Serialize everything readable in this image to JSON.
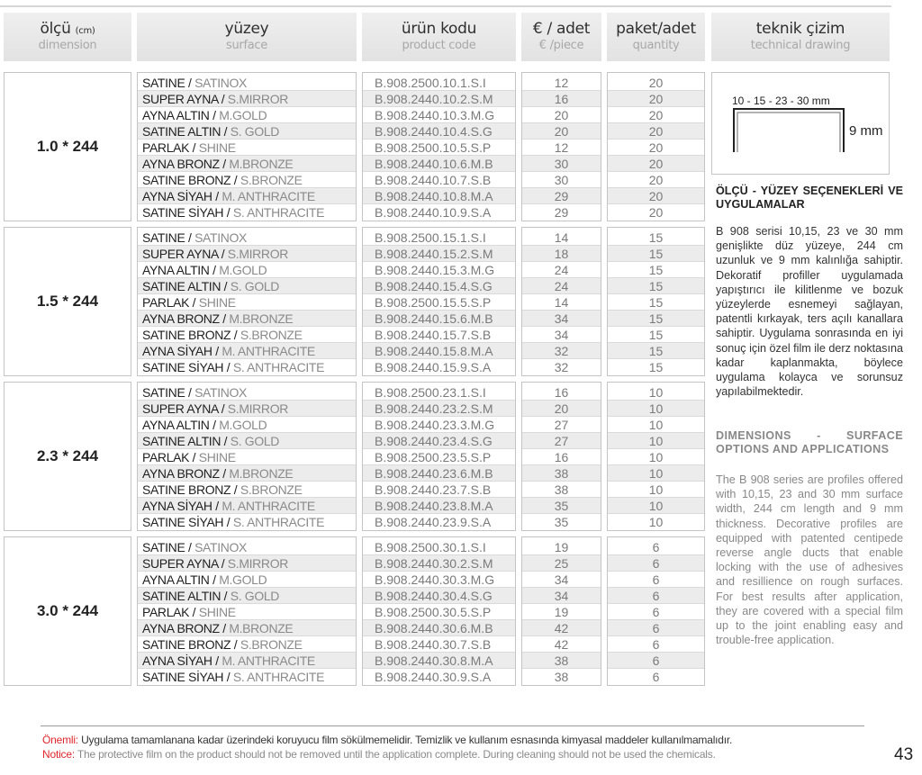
{
  "header": {
    "dimension": {
      "title": "ölçü",
      "unit": "(cm)",
      "subtitle": "dimension"
    },
    "surface": {
      "title": "yüzey",
      "subtitle": "surface"
    },
    "code": {
      "title": "ürün kodu",
      "subtitle": "product code"
    },
    "price": {
      "title": "€ / adet",
      "subtitle": "€ /piece"
    },
    "qty": {
      "title": "paket/adet",
      "subtitle": "quantity"
    },
    "drawing": {
      "title": "teknik çizim",
      "subtitle": "technical drawing"
    }
  },
  "surfaces": [
    {
      "tr": "SATINE",
      "en": "SATINOX"
    },
    {
      "tr": "SUPER AYNA",
      "en": "S.MIRROR"
    },
    {
      "tr": "AYNA ALTIN",
      "en": "M.GOLD"
    },
    {
      "tr": "SATINE ALTIN",
      "en": "S. GOLD"
    },
    {
      "tr": "PARLAK",
      "en": "SHINE"
    },
    {
      "tr": "AYNA BRONZ",
      "en": "M.BRONZE"
    },
    {
      "tr": "SATINE BRONZ",
      "en": "S.BRONZE"
    },
    {
      "tr": "AYNA SİYAH",
      "en": "M. ANTHRACITE"
    },
    {
      "tr": "SATINE SİYAH",
      "en": "S. ANTHRACITE"
    }
  ],
  "groups": [
    {
      "dimension": "1.0 * 244",
      "codes": [
        "B.908.2500.10.1.S.I",
        "B.908.2440.10.2.S.M",
        "B.908.2440.10.3.M.G",
        "B.908.2440.10.4.S.G",
        "B.908.2500.10.5.S.P",
        "B.908.2440.10.6.M.B",
        "B.908.2440.10.7.S.B",
        "B.908.2440.10.8.M.A",
        "B.908.2440.10.9.S.A"
      ],
      "prices": [
        "12",
        "16",
        "20",
        "20",
        "12",
        "30",
        "30",
        "29",
        "29"
      ],
      "qty": [
        "20",
        "20",
        "20",
        "20",
        "20",
        "20",
        "20",
        "20",
        "20"
      ]
    },
    {
      "dimension": "1.5 * 244",
      "codes": [
        "B.908.2500.15.1.S.I",
        "B.908.2440.15.2.S.M",
        "B.908.2440.15.3.M.G",
        "B.908.2440.15.4.S.G",
        "B.908.2500.15.5.S.P",
        "B.908.2440.15.6.M.B",
        "B.908.2440.15.7.S.B",
        "B.908.2440.15.8.M.A",
        "B.908.2440.15.9.S.A"
      ],
      "prices": [
        "14",
        "18",
        "24",
        "24",
        "14",
        "34",
        "34",
        "32",
        "32"
      ],
      "qty": [
        "15",
        "15",
        "15",
        "15",
        "15",
        "15",
        "15",
        "15",
        "15"
      ]
    },
    {
      "dimension": "2.3 * 244",
      "codes": [
        "B.908.2500.23.1.S.I",
        "B.908.2440.23.2.S.M",
        "B.908.2440.23.3.M.G",
        "B.908.2440.23.4.S.G",
        "B.908.2500.23.5.S.P",
        "B.908.2440.23.6.M.B",
        "B.908.2440.23.7.S.B",
        "B.908.2440.23.8.M.A",
        "B.908.2440.23.9.S.A"
      ],
      "prices": [
        "16",
        "20",
        "27",
        "27",
        "16",
        "38",
        "38",
        "35",
        "35"
      ],
      "qty": [
        "10",
        "10",
        "10",
        "10",
        "10",
        "10",
        "10",
        "10",
        "10"
      ]
    },
    {
      "dimension": "3.0 * 244",
      "codes": [
        "B.908.2500.30.1.S.I",
        "B.908.2440.30.2.S.M",
        "B.908.2440.30.3.M.G",
        "B.908.2440.30.4.S.G",
        "B.908.2500.30.5.S.P",
        "B.908.2440.30.6.M.B",
        "B.908.2440.30.7.S.B",
        "B.908.2440.30.8.M.A",
        "B.908.2440.30.9.S.A"
      ],
      "prices": [
        "19",
        "25",
        "34",
        "34",
        "19",
        "42",
        "42",
        "38",
        "38"
      ],
      "qty": [
        "6",
        "6",
        "6",
        "6",
        "6",
        "6",
        "6",
        "6",
        "6"
      ]
    }
  ],
  "drawing": {
    "width_label": "10 - 15 - 23 - 30 mm",
    "height_label": "9 mm"
  },
  "side": {
    "tr_title": "ÖLÇÜ - YÜZEY SEÇENEKLERİ VE UYGULAMALAR",
    "tr_body": "B 908 serisi 10,15, 23 ve 30 mm genişlikte düz yüzeye, 244 cm uzunluk ve 9 mm kalınlığa sahiptir. Dekoratif profiller uygulamada yapıştırıcı ile kilitlenme ve bozuk yüzeylerde esnemeyi sağlayan, patentli kırkayak, ters açılı kanallara sahiptir. Uygulama sonrasında en iyi sonuç için özel film ile derz noktasına kadar kaplanmakta, böylece uygulama kolayca ve sorunsuz yapılabilmektedir.",
    "en_title": "DIMENSIONS - SURFACE OPTIONS AND APPLICATIONS",
    "en_body": "The B 908 series are profiles offered with 10,15, 23 and 30 mm surface width, 244 cm length and 9 mm thickness. Decorative profiles are equipped with patented centipede reverse angle ducts that enable locking with the use of adhesives and resillience on rough surfaces. For best results after application, they are covered with a special film up to the joint enabling easy and trouble-free application."
  },
  "footer": {
    "tr_label": "Önemli:",
    "tr_text": " Uygulama tamamlanana kadar üzerindeki koruyucu film sökülmemelidir. Temizlik ve kullanım esnasında kimyasal maddeler kullanılmamalıdır.",
    "en_label": "Notice:",
    "en_text": " The protective film on the product should not be removed until the application complete. During cleaning should not be used the chemicals.",
    "page_number": "43"
  },
  "colors": {
    "notice_red": "#e0262b",
    "header_bg": "#e6e6e6",
    "alt_row": "#ececec"
  }
}
